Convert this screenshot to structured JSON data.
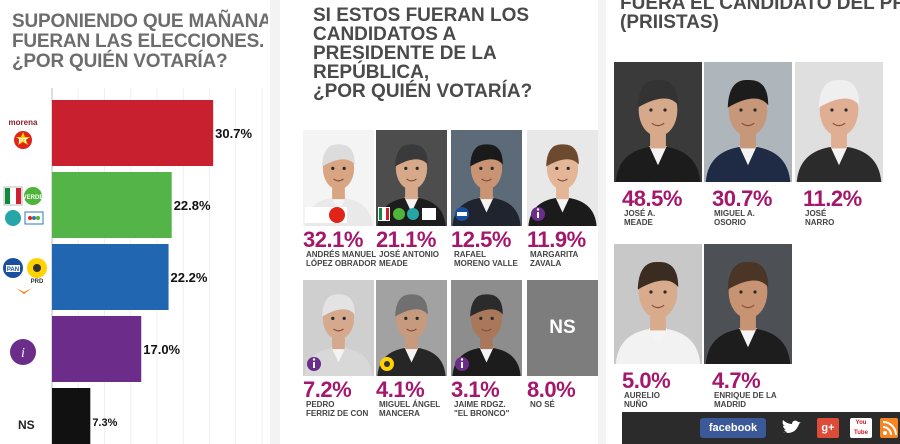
{
  "chart_data": {
    "type": "bar",
    "orientation": "horizontal",
    "title": "SUPONIENDO QUE MAÑANA FUERAN LAS ELECCIONES. ¿POR QUIÉN VOTARÍA?",
    "title_lines": [
      "SUPONIENDO QUE MAÑANA",
      "FUERAN LAS ELECCIONES.",
      "¿POR QUIÉN VOTARÍA?"
    ],
    "categories": [
      "Morena-PT",
      "PRI-PVEM-Nueva Alianza",
      "PAN-PRD-MC",
      "Independiente",
      "NS"
    ],
    "values": [
      30.7,
      22.8,
      22.2,
      17.0,
      7.3
    ],
    "value_labels": [
      "30.7%",
      "22.8%",
      "22.2%",
      "17.0%",
      "7.3%"
    ],
    "colors": [
      "#c8202f",
      "#55b447",
      "#2166b0",
      "#6c2c89",
      "#111111"
    ],
    "xlim": [
      0,
      40
    ],
    "ns_label": "NS",
    "logo_text": {
      "morena": "morena",
      "pt": "PT",
      "verde": "VERDE",
      "pan": "PAN",
      "prd": "PRD",
      "independiente": "i"
    }
  },
  "candidates": {
    "title_lines": [
      "SI ESTOS FUERAN LOS",
      "CANDIDATOS A",
      "PRESIDENTE DE LA",
      "REPÚBLICA,",
      "¿POR QUIÉN VOTARÍA?"
    ],
    "items": [
      {
        "pct": "32.1%",
        "name_lines": [
          "ANDRÉS MANUEL",
          "LÓPEZ OBRADOR"
        ],
        "badge": "morena",
        "skin": "#d8a583",
        "hair": "#dcdcdc",
        "suit": "#e9e9e9",
        "bg": "#f4f4f4"
      },
      {
        "pct": "21.1%",
        "name_lines": [
          "JOSÉ ANTONIO",
          "MEADE"
        ],
        "badge": "pri",
        "skin": "#d6a98a",
        "hair": "#3a3a3a",
        "suit": "#1d1d1d",
        "bg": "#4d4d4d"
      },
      {
        "pct": "12.5%",
        "name_lines": [
          "RAFAEL",
          "MORENO VALLE"
        ],
        "badge": "pan",
        "skin": "#c99473",
        "hair": "#1a1a1a",
        "suit": "#20242e",
        "bg": "#5d6b78"
      },
      {
        "pct": "11.9%",
        "name_lines": [
          "MARGARITA",
          "ZAVALA"
        ],
        "badge": "i",
        "skin": "#e3b698",
        "hair": "#6b4a30",
        "suit": "#1b1b1b",
        "bg": "#e8e8e8"
      },
      {
        "pct": "7.2%",
        "name_lines": [
          "PEDRO",
          "FERRIZ DE CON"
        ],
        "badge": "i",
        "skin": "#d5a98d",
        "hair": "#e3e3e3",
        "suit": "#d8d8d8",
        "bg": "#cfcfcf"
      },
      {
        "pct": "4.1%",
        "name_lines": [
          "MIGUEL ÁNGEL",
          "MANCERA"
        ],
        "badge": "prd",
        "skin": "#c69a7e",
        "hair": "#707070",
        "suit": "#262626",
        "bg": "#a2a2a2"
      },
      {
        "pct": "3.1%",
        "name_lines": [
          "JAIME RDGZ.",
          "\"EL BRONCO\""
        ],
        "badge": "i",
        "skin": "#a9785b",
        "hair": "#2b2b2b",
        "suit": "#1c1c1c",
        "bg": "#8d8d8d"
      },
      {
        "pct": "8.0%",
        "name_lines": [
          "NO SÉ"
        ],
        "badge": "none",
        "ns": "NS"
      }
    ]
  },
  "pri": {
    "title_lines": [
      "FUERA EL CANDIDATO DEL PRI?",
      "(PRIISTAS)"
    ],
    "items": [
      {
        "pct": "48.5%",
        "name_lines": [
          "JOSÉ A.",
          "MEADE"
        ],
        "skin": "#d6a98a",
        "hair": "#333333",
        "suit": "#1c1c1c",
        "bg": "#3a3a3a"
      },
      {
        "pct": "30.7%",
        "name_lines": [
          "MIGUEL A.",
          "OSORIO"
        ],
        "skin": "#c7977a",
        "hair": "#1c1c1c",
        "suit": "#1f2a44",
        "bg": "#aeb6bc"
      },
      {
        "pct": "11.2%",
        "name_lines": [
          "JOSÉ",
          "NARRO"
        ],
        "skin": "#e0ae92",
        "hair": "#efefef",
        "suit": "#2b2b2b",
        "bg": "#dfdfdf"
      },
      {
        "pct": "5.0%",
        "name_lines": [
          "AURELIO",
          "NUÑO"
        ],
        "skin": "#d9ab8d",
        "hair": "#3b2c22",
        "suit": "#f2f2f2",
        "bg": "#c8c8c8"
      },
      {
        "pct": "4.7%",
        "name_lines": [
          "ENRIQUE DE LA",
          "MADRID"
        ],
        "skin": "#c79373",
        "hair": "#4a3526",
        "suit": "#1d1d1d",
        "bg": "#4d5055"
      }
    ]
  },
  "social": {
    "facebook": "facebook",
    "twitter_icon": "twitter-bird-icon",
    "google": "g+",
    "youtube": "You Tube",
    "rss_icon": "rss-icon"
  },
  "colors": {
    "accent": "#a3186c",
    "title_gray": "#6d6d6d"
  }
}
